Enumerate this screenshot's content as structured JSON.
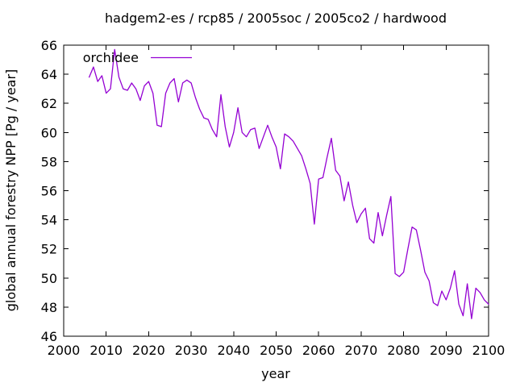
{
  "chart_data": {
    "type": "line",
    "title": "hadgem2-es / rcp85 / 2005soc / 2005co2 / hardwood",
    "xlabel": "year",
    "ylabel": "global annual forestry NPP [Pg / year]",
    "xlim": [
      2000,
      2100
    ],
    "ylim": [
      46,
      66
    ],
    "x_ticks": [
      2000,
      2010,
      2020,
      2030,
      2040,
      2050,
      2060,
      2070,
      2080,
      2090,
      2100
    ],
    "y_ticks": [
      46,
      48,
      50,
      52,
      54,
      56,
      58,
      60,
      62,
      64,
      66
    ],
    "grid": false,
    "background": "#ffffff",
    "axis_color": "#000000",
    "legend": {
      "position": "top-left-inside",
      "entries": [
        "orchidee"
      ]
    },
    "series": [
      {
        "name": "orchidee",
        "color": "#9400d3",
        "x": [
          2006,
          2007,
          2008,
          2009,
          2010,
          2011,
          2012,
          2013,
          2014,
          2015,
          2016,
          2017,
          2018,
          2019,
          2020,
          2021,
          2022,
          2023,
          2024,
          2025,
          2026,
          2027,
          2028,
          2029,
          2030,
          2031,
          2032,
          2033,
          2034,
          2035,
          2036,
          2037,
          2038,
          2039,
          2040,
          2041,
          2042,
          2043,
          2044,
          2045,
          2046,
          2047,
          2048,
          2049,
          2050,
          2051,
          2052,
          2053,
          2054,
          2055,
          2056,
          2057,
          2058,
          2059,
          2060,
          2061,
          2062,
          2063,
          2064,
          2065,
          2066,
          2067,
          2068,
          2069,
          2070,
          2071,
          2072,
          2073,
          2074,
          2075,
          2076,
          2077,
          2078,
          2079,
          2080,
          2081,
          2082,
          2083,
          2084,
          2085,
          2086,
          2087,
          2088,
          2089,
          2090,
          2091,
          2092,
          2093,
          2094,
          2095,
          2096,
          2097,
          2098,
          2099,
          2100
        ],
        "values": [
          63.8,
          64.5,
          63.5,
          63.9,
          62.7,
          63.0,
          65.7,
          63.8,
          63.0,
          62.9,
          63.4,
          63.0,
          62.2,
          63.2,
          63.5,
          62.7,
          60.5,
          60.4,
          62.7,
          63.4,
          63.7,
          62.1,
          63.4,
          63.6,
          63.4,
          62.4,
          61.6,
          61.0,
          60.9,
          60.2,
          59.7,
          62.6,
          60.4,
          59.0,
          60.0,
          61.7,
          60.0,
          59.7,
          60.2,
          60.3,
          58.9,
          59.7,
          60.5,
          59.7,
          59.0,
          57.5,
          59.9,
          59.7,
          59.4,
          58.9,
          58.4,
          57.5,
          56.5,
          53.7,
          56.8,
          56.9,
          58.3,
          59.6,
          57.4,
          57.0,
          55.3,
          56.6,
          55.0,
          53.8,
          54.4,
          54.8,
          52.7,
          52.4,
          54.5,
          52.9,
          54.3,
          55.6,
          50.3,
          50.1,
          50.4,
          52.0,
          53.5,
          53.3,
          51.9,
          50.4,
          49.8,
          48.3,
          48.1,
          49.1,
          48.5,
          49.3,
          50.5,
          48.2,
          47.4,
          49.6,
          47.2,
          49.3,
          49.0,
          48.5,
          48.2
        ]
      }
    ]
  }
}
